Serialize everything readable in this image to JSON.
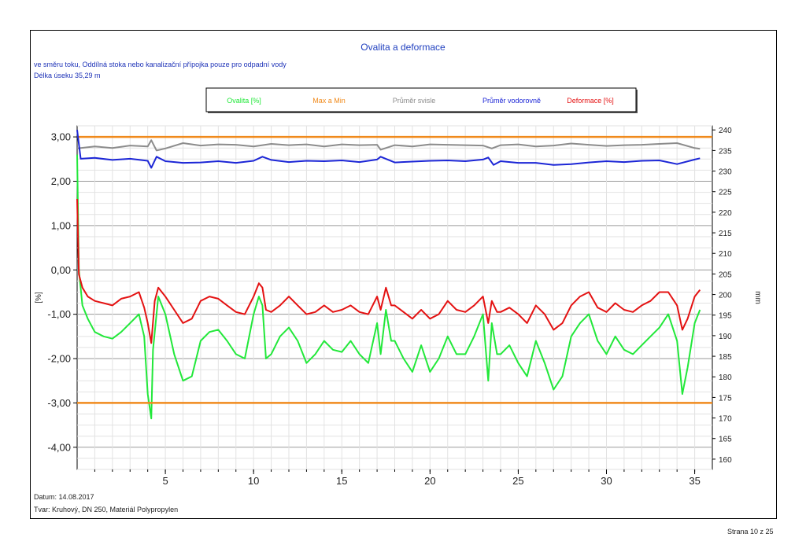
{
  "report": {
    "title": "Ovalita a deformace",
    "subtitle_line1": "ve směru toku, Oddílná stoka nebo kanalizační přípojka pouze pro odpadní vody",
    "subtitle_line2": "Délka úseku  35,29 m",
    "footer_date": "Datum: 14.08.2017",
    "footer_shape": "Tvar: Kruhový, DN 250, Materiál Polypropylen",
    "page_number": "Strana 10 z 25"
  },
  "chart_data": {
    "type": "line",
    "title": "Ovalita a deformace",
    "xlabel": "",
    "ylabel": "[%]",
    "y2label": "mm",
    "xlim": [
      0,
      36
    ],
    "ylim": [
      -4.5,
      3.25
    ],
    "y2lim": [
      157.5,
      241
    ],
    "x_ticks": [
      5,
      10,
      15,
      20,
      25,
      30,
      35
    ],
    "y_ticks": [
      3,
      2,
      1,
      0,
      -1,
      -2,
      -3,
      -4
    ],
    "y_tick_labels": [
      "3,00",
      "2,00",
      "1,00",
      "0,00",
      "-1,00",
      "-2,00",
      "-3,00",
      "-4,00"
    ],
    "y2_ticks": [
      240,
      235,
      230,
      225,
      220,
      215,
      210,
      205,
      200,
      195,
      190,
      185,
      180,
      175,
      170,
      165,
      160
    ],
    "grid": true,
    "legend_position": "top-center",
    "series": [
      {
        "name": "Ovalita [%]",
        "axis": "left",
        "color": "#22e83a",
        "x": [
          0,
          0.1,
          0.3,
          0.6,
          1.0,
          1.5,
          2.0,
          2.5,
          3.0,
          3.5,
          3.8,
          4.0,
          4.2,
          4.3,
          4.6,
          5.0,
          5.5,
          6.0,
          6.5,
          7.0,
          7.5,
          8.0,
          8.5,
          9.0,
          9.5,
          10.0,
          10.3,
          10.5,
          10.7,
          11.0,
          11.5,
          12.0,
          12.5,
          13.0,
          13.5,
          14.0,
          14.5,
          15.0,
          15.5,
          16.0,
          16.5,
          17.0,
          17.2,
          17.5,
          17.8,
          18.0,
          18.5,
          19.0,
          19.5,
          20.0,
          20.5,
          21.0,
          21.5,
          22.0,
          22.5,
          23.0,
          23.3,
          23.5,
          23.8,
          24.0,
          24.5,
          25.0,
          25.5,
          26.0,
          26.5,
          27.0,
          27.5,
          28.0,
          28.5,
          29.0,
          29.5,
          30.0,
          30.5,
          31.0,
          31.5,
          32.0,
          32.5,
          33.0,
          33.5,
          34.0,
          34.3,
          34.6,
          35.0,
          35.3
        ],
        "y": [
          2.6,
          0.0,
          -0.8,
          -1.1,
          -1.4,
          -1.5,
          -1.55,
          -1.4,
          -1.2,
          -1.0,
          -1.5,
          -2.8,
          -3.35,
          -1.8,
          -0.6,
          -1.0,
          -1.9,
          -2.5,
          -2.4,
          -1.6,
          -1.4,
          -1.35,
          -1.6,
          -1.9,
          -2.0,
          -1.0,
          -0.6,
          -0.8,
          -2.0,
          -1.9,
          -1.5,
          -1.3,
          -1.6,
          -2.1,
          -1.9,
          -1.6,
          -1.8,
          -1.85,
          -1.6,
          -1.9,
          -2.1,
          -1.2,
          -1.9,
          -0.9,
          -1.6,
          -1.6,
          -2.0,
          -2.3,
          -1.7,
          -2.3,
          -2.0,
          -1.5,
          -1.9,
          -1.9,
          -1.5,
          -1.0,
          -2.5,
          -1.2,
          -1.9,
          -1.9,
          -1.7,
          -2.1,
          -2.4,
          -1.6,
          -2.1,
          -2.7,
          -2.4,
          -1.5,
          -1.2,
          -1.0,
          -1.6,
          -1.9,
          -1.5,
          -1.8,
          -1.9,
          -1.7,
          -1.5,
          -1.3,
          -1.0,
          -1.6,
          -2.8,
          -2.2,
          -1.2,
          -0.9
        ]
      },
      {
        "name": "Max a Min",
        "axis": "left",
        "color": "#f08a1c",
        "x": [
          0,
          36
        ],
        "y": [
          3.0,
          3.0
        ],
        "y_lower": [
          -3.0,
          -3.0
        ]
      },
      {
        "name": "Průměr svisle",
        "axis": "right",
        "color": "#8c8c8c",
        "x": [
          0,
          1,
          2,
          3,
          4,
          4.2,
          4.5,
          5,
          6,
          7,
          8,
          9,
          10,
          11,
          12,
          13,
          14,
          15,
          16,
          17,
          17.2,
          18,
          19,
          20,
          21,
          22,
          23,
          23.5,
          24,
          25,
          26,
          27,
          28,
          29,
          30,
          31,
          32,
          33,
          34,
          35,
          35.3
        ],
        "y": [
          235.5,
          236,
          235.6,
          236.2,
          236,
          237.5,
          235,
          235.5,
          236.8,
          236.2,
          236.5,
          236.4,
          236,
          236.6,
          236.3,
          236.5,
          236,
          236.5,
          236.3,
          236.4,
          235.2,
          236.3,
          236,
          236.5,
          236.4,
          236.3,
          236.2,
          235.5,
          236.3,
          236.5,
          236,
          236.2,
          236.7,
          236.4,
          236.1,
          236.3,
          236.4,
          236.6,
          236.8,
          235.6,
          235.4
        ]
      },
      {
        "name": "Průměr vodorovně",
        "axis": "right",
        "color": "#1c26d6",
        "x": [
          0,
          0.2,
          1,
          2,
          3,
          4,
          4.2,
          4.5,
          5,
          6,
          7,
          8,
          9,
          10,
          10.5,
          11,
          12,
          13,
          14,
          15,
          16,
          17,
          17.2,
          18,
          19,
          20,
          21,
          22,
          23,
          23.3,
          23.6,
          24,
          25,
          26,
          27,
          28,
          29,
          30,
          31,
          32,
          33,
          34,
          35,
          35.3
        ],
        "y": [
          240,
          233,
          233.2,
          232.7,
          233,
          232.5,
          230.8,
          233.5,
          232.4,
          232,
          232.1,
          232.4,
          232,
          232.5,
          233.5,
          232.7,
          232.2,
          232.5,
          232.4,
          232.6,
          232.2,
          232.8,
          233.5,
          232.1,
          232.3,
          232.5,
          232.6,
          232.4,
          232.8,
          233.3,
          231.5,
          232.4,
          232,
          232,
          231.5,
          231.7,
          232.1,
          232.4,
          232.2,
          232.5,
          232.6,
          231.7,
          232.8,
          233.1
        ]
      },
      {
        "name": "Deformace [%]",
        "axis": "left",
        "color": "#e41212",
        "x": [
          0,
          0.1,
          0.3,
          0.6,
          1.0,
          1.5,
          2.0,
          2.5,
          3.0,
          3.5,
          3.8,
          4.0,
          4.2,
          4.4,
          4.6,
          5.0,
          5.5,
          6.0,
          6.5,
          7.0,
          7.5,
          8.0,
          8.5,
          9.0,
          9.5,
          10.0,
          10.3,
          10.5,
          10.7,
          11.0,
          11.5,
          12.0,
          12.5,
          13.0,
          13.5,
          14.0,
          14.5,
          15.0,
          15.5,
          16.0,
          16.5,
          17.0,
          17.2,
          17.5,
          17.8,
          18.0,
          18.5,
          19.0,
          19.5,
          20.0,
          20.5,
          21.0,
          21.5,
          22.0,
          22.5,
          23.0,
          23.3,
          23.5,
          23.8,
          24.0,
          24.5,
          25.0,
          25.5,
          26.0,
          26.5,
          27.0,
          27.5,
          28.0,
          28.5,
          29.0,
          29.5,
          30.0,
          30.5,
          31.0,
          31.5,
          32.0,
          32.5,
          33.0,
          33.5,
          34.0,
          34.3,
          34.6,
          35.0,
          35.3
        ],
        "y": [
          1.6,
          -0.1,
          -0.4,
          -0.6,
          -0.7,
          -0.75,
          -0.8,
          -0.65,
          -0.6,
          -0.5,
          -0.85,
          -1.2,
          -1.65,
          -0.7,
          -0.4,
          -0.6,
          -0.9,
          -1.2,
          -1.1,
          -0.7,
          -0.6,
          -0.65,
          -0.8,
          -0.95,
          -1.0,
          -0.6,
          -0.3,
          -0.4,
          -0.9,
          -0.95,
          -0.8,
          -0.6,
          -0.8,
          -1.0,
          -0.95,
          -0.8,
          -0.95,
          -0.9,
          -0.8,
          -0.95,
          -1.0,
          -0.6,
          -0.9,
          -0.4,
          -0.8,
          -0.8,
          -0.95,
          -1.1,
          -0.9,
          -1.1,
          -1.0,
          -0.7,
          -0.9,
          -0.95,
          -0.8,
          -0.6,
          -1.2,
          -0.7,
          -0.95,
          -0.95,
          -0.85,
          -1.0,
          -1.2,
          -0.8,
          -1.0,
          -1.35,
          -1.2,
          -0.8,
          -0.6,
          -0.5,
          -0.85,
          -0.95,
          -0.75,
          -0.9,
          -0.95,
          -0.8,
          -0.7,
          -0.5,
          -0.5,
          -0.8,
          -1.35,
          -1.1,
          -0.6,
          -0.45
        ]
      }
    ]
  }
}
